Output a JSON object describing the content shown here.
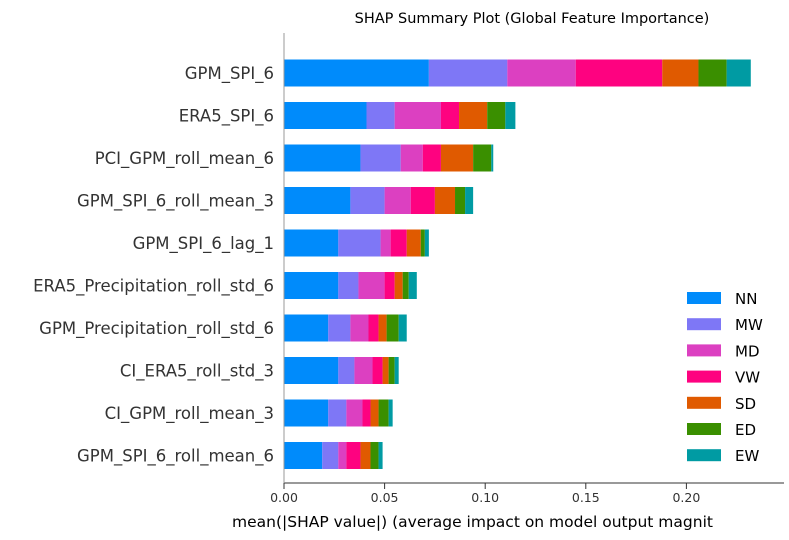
{
  "chart_data": {
    "type": "bar",
    "stacked": true,
    "orientation": "horizontal",
    "title": "SHAP Summary Plot (Global Feature Importance)",
    "xlabel": "mean(|SHAP value|) (average impact on model output magnit",
    "ylabel": "",
    "xlim": [
      0,
      0.24
    ],
    "xticks": [
      "0.00",
      "0.05",
      "0.10",
      "0.15",
      "0.20"
    ],
    "xtick_values": [
      0,
      0.05,
      0.1,
      0.15,
      0.2
    ],
    "grid": false,
    "legend_position": "bottom-right",
    "categories": [
      "GPM_SPI_6",
      "ERA5_SPI_6",
      "PCI_GPM_roll_mean_6",
      "GPM_SPI_6_roll_mean_3",
      "GPM_SPI_6_lag_1",
      "ERA5_Precipitation_roll_std_6",
      "GPM_Precipitation_roll_std_6",
      "CI_ERA5_roll_std_3",
      "CI_GPM_roll_mean_3",
      "GPM_SPI_6_roll_mean_6"
    ],
    "series": [
      {
        "name": "NN",
        "color": "#008bfb",
        "values": [
          0.072,
          0.041,
          0.038,
          0.033,
          0.027,
          0.027,
          0.022,
          0.027,
          0.022,
          0.019
        ]
      },
      {
        "name": "MW",
        "color": "#7e77f6",
        "values": [
          0.039,
          0.014,
          0.02,
          0.017,
          0.021,
          0.01,
          0.011,
          0.008,
          0.009,
          0.008
        ]
      },
      {
        "name": "MD",
        "color": "#dc40c1",
        "values": [
          0.034,
          0.023,
          0.011,
          0.013,
          0.005,
          0.013,
          0.009,
          0.009,
          0.008,
          0.004
        ]
      },
      {
        "name": "VW",
        "color": "#fe0280",
        "values": [
          0.043,
          0.009,
          0.009,
          0.012,
          0.008,
          0.005,
          0.005,
          0.005,
          0.004,
          0.007
        ]
      },
      {
        "name": "SD",
        "color": "#e05a00",
        "values": [
          0.018,
          0.014,
          0.016,
          0.01,
          0.007,
          0.004,
          0.004,
          0.003,
          0.004,
          0.005
        ]
      },
      {
        "name": "ED",
        "color": "#3a8f00",
        "values": [
          0.014,
          0.009,
          0.009,
          0.005,
          0.002,
          0.003,
          0.006,
          0.003,
          0.005,
          0.004
        ]
      },
      {
        "name": "EW",
        "color": "#009ba3",
        "values": [
          0.012,
          0.005,
          0.001,
          0.004,
          0.002,
          0.004,
          0.004,
          0.002,
          0.002,
          0.002
        ]
      }
    ]
  }
}
